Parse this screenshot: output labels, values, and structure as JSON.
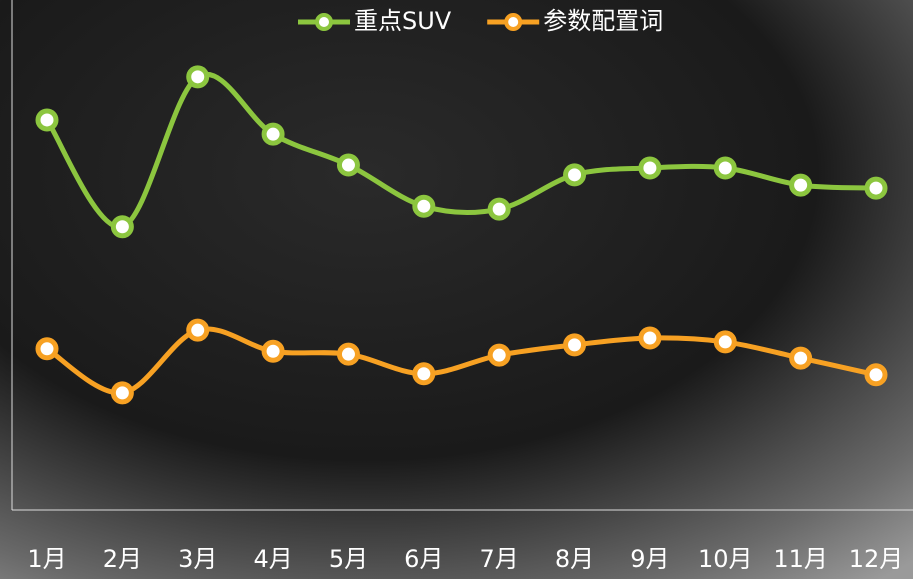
{
  "chart_data": {
    "type": "line",
    "categories": [
      "1月",
      "2月",
      "3月",
      "4月",
      "5月",
      "6月",
      "7月",
      "8月",
      "9月",
      "10月",
      "11月",
      "12月"
    ],
    "series": [
      {
        "name": "重点SUV",
        "color": "#8cc63f",
        "values": [
          79.6,
          57.8,
          88.4,
          76.7,
          70.4,
          62.0,
          61.4,
          68.4,
          69.8,
          69.8,
          66.3,
          65.7
        ]
      },
      {
        "name": "参数配置词",
        "color": "#f7a123",
        "values": [
          32.9,
          23.9,
          36.7,
          32.4,
          31.8,
          27.8,
          31.6,
          33.7,
          35.1,
          34.3,
          31.0,
          27.6
        ]
      }
    ],
    "ylim": [
      0,
      100
    ],
    "smooth": true
  }
}
